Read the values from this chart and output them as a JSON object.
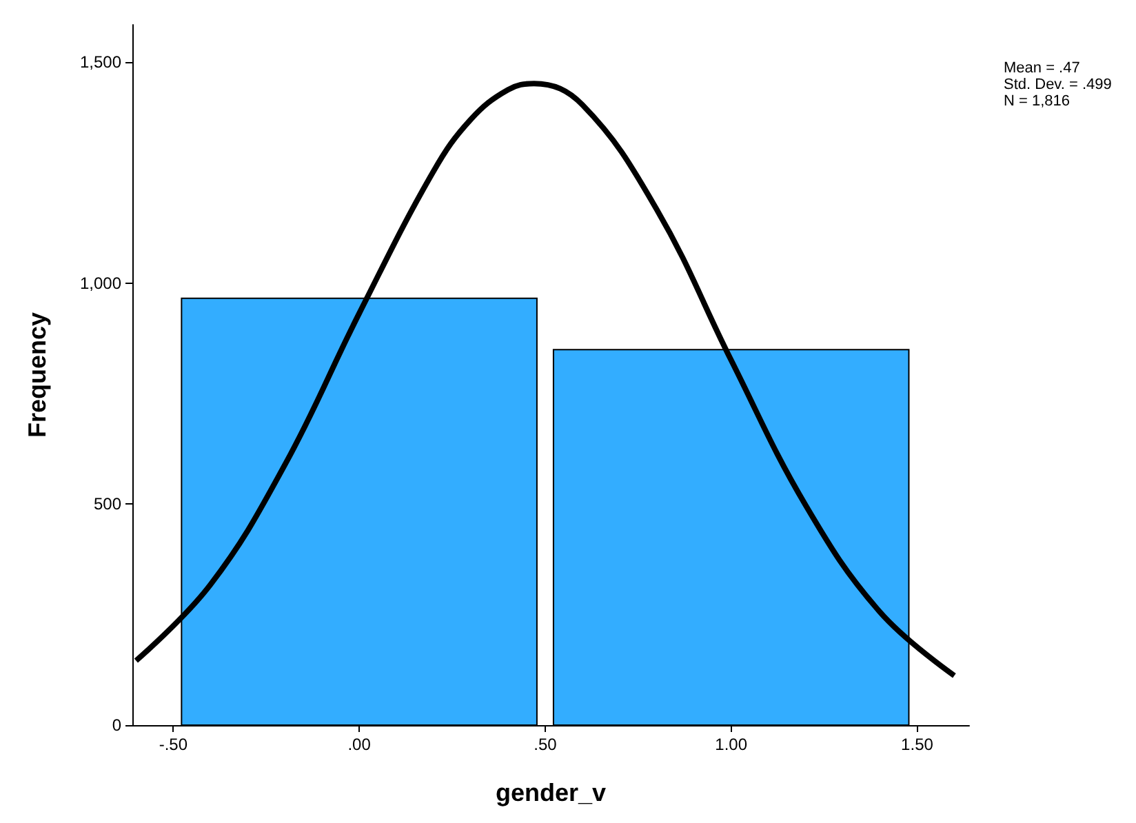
{
  "chart_data": {
    "type": "histogram",
    "xlabel": "gender_v",
    "ylabel": "Frequency",
    "bins": [
      -0.5,
      0.5,
      1.5
    ],
    "values": [
      966,
      850
    ],
    "color": "#33adff",
    "series": [
      {
        "type": "line",
        "color": "#000000",
        "x": [
          -0.6,
          -0.4,
          -0.2,
          0,
          0.2,
          0.3,
          0.4,
          0.47,
          0.6,
          0.8,
          1.0,
          1.2,
          1.4,
          1.6
        ],
        "values": [
          146,
          318,
          589,
          932,
          1254,
          1371,
          1438,
          1452,
          1404,
          1167,
          826,
          498,
          256,
          112
        ]
      }
    ],
    "xlim": [
      -0.61,
      1.64
    ],
    "xticks": [
      {
        "value": -0.5,
        "label": "-.50"
      },
      {
        "value": 0,
        "label": ".00"
      },
      {
        "value": 0.5,
        "label": ".50"
      },
      {
        "value": 1,
        "label": "1.00"
      },
      {
        "value": 1.5,
        "label": "1.50"
      }
    ],
    "ylim": [
      0,
      1585
    ],
    "yticks": [
      0,
      {
        "value": 500,
        "label": "500"
      },
      {
        "value": 1000,
        "label": "1,000"
      },
      {
        "value": 1500,
        "label": "1,500"
      }
    ],
    "grid": false,
    "marker": "none",
    "line_style": "solid",
    "annotations": [
      "Mean = .47",
      "Std. Dev. = .499",
      "N = 1,816"
    ]
  }
}
